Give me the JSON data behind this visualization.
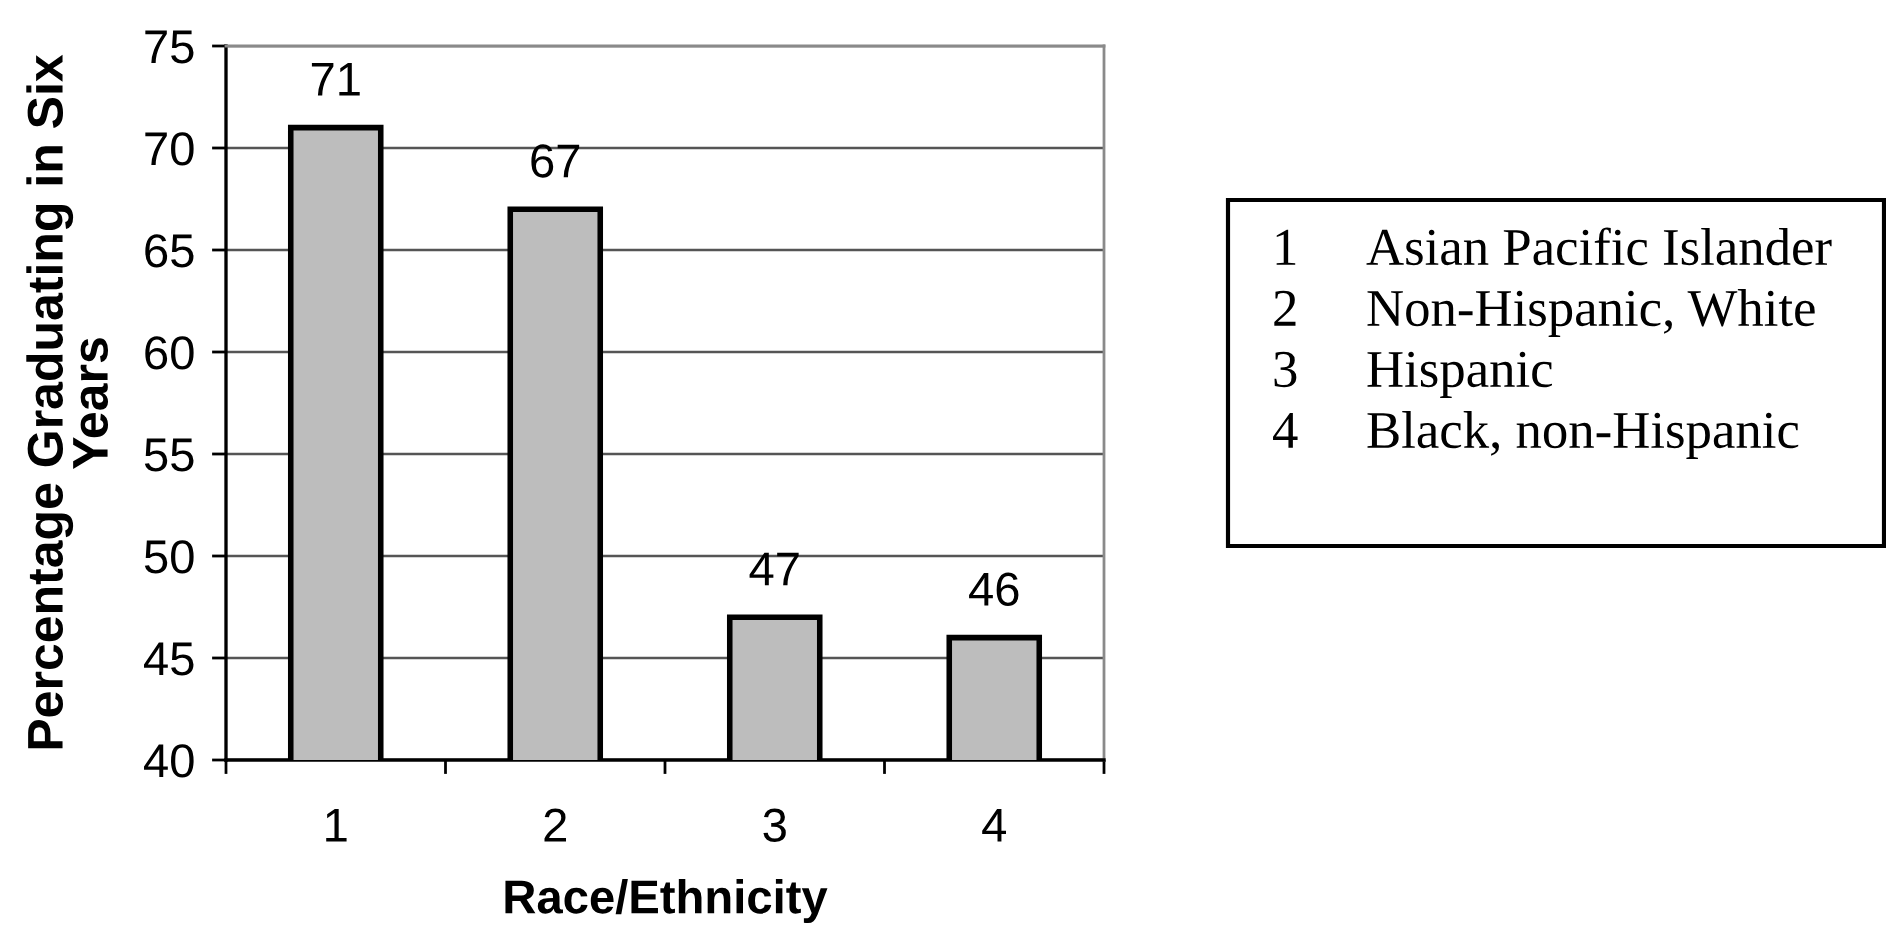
{
  "chart_data": {
    "type": "bar",
    "xlabel": "Race/Ethnicity",
    "ylabel": "Percentage Graduating in Six Years",
    "categories": [
      "1",
      "2",
      "3",
      "4"
    ],
    "values": [
      71,
      67,
      47,
      46
    ],
    "color": "#bdbdbd",
    "ylim": [
      40,
      75
    ],
    "yticks": [
      40,
      45,
      50,
      55,
      60,
      65,
      70,
      75
    ],
    "grid": "y",
    "data_labels": true,
    "annotations": [
      "Asian Pacific Islander",
      "Non-Hispanic, White",
      "Hispanic",
      "Black, non-Hispanic"
    ]
  }
}
